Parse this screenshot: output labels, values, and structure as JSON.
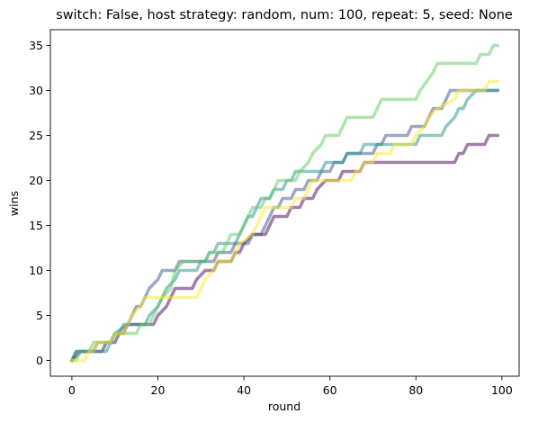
{
  "chart_data": {
    "type": "line",
    "title": "switch: False, host strategy: random, num: 100, repeat: 5, seed: None",
    "xlabel": "round",
    "ylabel": "wins",
    "xlim": [
      -5,
      104
    ],
    "ylim": [
      -1.75,
      36.75
    ],
    "xticks": [
      0,
      20,
      40,
      60,
      80,
      100
    ],
    "yticks": [
      0,
      5,
      10,
      15,
      20,
      25,
      30,
      35
    ],
    "grid": false,
    "legend": "none",
    "line_alpha": 0.5,
    "series": [
      {
        "color": "#440154",
        "points": [
          [
            0,
            0
          ],
          [
            2,
            1
          ],
          [
            7,
            1
          ],
          [
            8,
            2
          ],
          [
            10,
            2
          ],
          [
            11,
            3
          ],
          [
            12,
            3
          ],
          [
            13,
            4
          ],
          [
            19,
            4
          ],
          [
            20,
            5
          ],
          [
            22,
            6
          ],
          [
            23,
            7
          ],
          [
            24,
            8
          ],
          [
            28,
            8
          ],
          [
            29,
            9
          ],
          [
            31,
            10
          ],
          [
            33,
            10
          ],
          [
            34,
            11
          ],
          [
            37,
            11
          ],
          [
            38,
            12
          ],
          [
            39,
            12
          ],
          [
            40,
            13
          ],
          [
            42,
            14
          ],
          [
            45,
            14
          ],
          [
            46,
            15
          ],
          [
            47,
            16
          ],
          [
            50,
            16
          ],
          [
            51,
            17
          ],
          [
            53,
            17
          ],
          [
            54,
            18
          ],
          [
            56,
            18
          ],
          [
            57,
            19
          ],
          [
            59,
            20
          ],
          [
            62,
            20
          ],
          [
            63,
            21
          ],
          [
            67,
            21
          ],
          [
            68,
            22
          ],
          [
            84,
            22
          ],
          [
            85,
            22
          ],
          [
            89,
            22
          ],
          [
            90,
            23
          ],
          [
            91,
            23
          ],
          [
            92,
            24
          ],
          [
            96,
            24
          ],
          [
            97,
            25
          ],
          [
            99,
            25
          ]
        ]
      },
      {
        "color": "#3b528b",
        "points": [
          [
            0,
            0
          ],
          [
            1,
            1
          ],
          [
            5,
            1
          ],
          [
            6,
            2
          ],
          [
            9,
            2
          ],
          [
            10,
            3
          ],
          [
            13,
            4
          ],
          [
            15,
            6
          ],
          [
            16,
            6
          ],
          [
            17,
            7
          ],
          [
            18,
            8
          ],
          [
            20,
            9
          ],
          [
            21,
            10
          ],
          [
            24,
            10
          ],
          [
            25,
            11
          ],
          [
            33,
            11
          ],
          [
            34,
            12
          ],
          [
            37,
            12
          ],
          [
            38,
            13
          ],
          [
            41,
            13
          ],
          [
            42,
            14
          ],
          [
            44,
            14
          ],
          [
            45,
            15
          ],
          [
            46,
            16
          ],
          [
            47,
            17
          ],
          [
            48,
            17
          ],
          [
            49,
            18
          ],
          [
            51,
            18
          ],
          [
            52,
            19
          ],
          [
            54,
            19
          ],
          [
            55,
            20
          ],
          [
            57,
            20
          ],
          [
            58,
            21
          ],
          [
            60,
            21
          ],
          [
            61,
            22
          ],
          [
            63,
            22
          ],
          [
            64,
            23
          ],
          [
            70,
            23
          ],
          [
            71,
            24
          ],
          [
            72,
            24
          ],
          [
            73,
            25
          ],
          [
            78,
            25
          ],
          [
            79,
            26
          ],
          [
            82,
            26
          ],
          [
            83,
            27
          ],
          [
            84,
            28
          ],
          [
            86,
            28
          ],
          [
            87,
            29
          ],
          [
            88,
            30
          ],
          [
            93,
            30
          ],
          [
            94,
            30
          ],
          [
            99,
            30
          ]
        ]
      },
      {
        "color": "#21918c",
        "points": [
          [
            0,
            0
          ],
          [
            1,
            1
          ],
          [
            8,
            1
          ],
          [
            9,
            2
          ],
          [
            10,
            3
          ],
          [
            11,
            3
          ],
          [
            12,
            4
          ],
          [
            17,
            4
          ],
          [
            18,
            5
          ],
          [
            20,
            6
          ],
          [
            21,
            7
          ],
          [
            22,
            8
          ],
          [
            24,
            9
          ],
          [
            25,
            10
          ],
          [
            29,
            10
          ],
          [
            30,
            11
          ],
          [
            31,
            11
          ],
          [
            32,
            12
          ],
          [
            33,
            12
          ],
          [
            34,
            13
          ],
          [
            38,
            13
          ],
          [
            39,
            14
          ],
          [
            40,
            15
          ],
          [
            41,
            16
          ],
          [
            42,
            16
          ],
          [
            43,
            17
          ],
          [
            44,
            18
          ],
          [
            46,
            18
          ],
          [
            47,
            19
          ],
          [
            49,
            19
          ],
          [
            50,
            20
          ],
          [
            51,
            20
          ],
          [
            52,
            21
          ],
          [
            58,
            21
          ],
          [
            59,
            22
          ],
          [
            63,
            22
          ],
          [
            64,
            23
          ],
          [
            67,
            23
          ],
          [
            68,
            24
          ],
          [
            80,
            24
          ],
          [
            81,
            25
          ],
          [
            86,
            25
          ],
          [
            87,
            26
          ],
          [
            89,
            27
          ],
          [
            90,
            28
          ],
          [
            91,
            28
          ],
          [
            92,
            29
          ],
          [
            94,
            30
          ],
          [
            99,
            30
          ]
        ]
      },
      {
        "color": "#5ec962",
        "points": [
          [
            0,
            0
          ],
          [
            1,
            0
          ],
          [
            2,
            1
          ],
          [
            4,
            1
          ],
          [
            5,
            2
          ],
          [
            9,
            2
          ],
          [
            10,
            3
          ],
          [
            15,
            3
          ],
          [
            16,
            4
          ],
          [
            18,
            4
          ],
          [
            19,
            5
          ],
          [
            20,
            6
          ],
          [
            21,
            7
          ],
          [
            23,
            8
          ],
          [
            24,
            10
          ],
          [
            26,
            11
          ],
          [
            31,
            11
          ],
          [
            32,
            12
          ],
          [
            35,
            12
          ],
          [
            36,
            13
          ],
          [
            37,
            14
          ],
          [
            39,
            14
          ],
          [
            40,
            15
          ],
          [
            41,
            16
          ],
          [
            42,
            17
          ],
          [
            44,
            17
          ],
          [
            45,
            18
          ],
          [
            46,
            18
          ],
          [
            47,
            19
          ],
          [
            48,
            20
          ],
          [
            52,
            20
          ],
          [
            53,
            21
          ],
          [
            55,
            22
          ],
          [
            56,
            23
          ],
          [
            58,
            24
          ],
          [
            59,
            25
          ],
          [
            62,
            25
          ],
          [
            63,
            26
          ],
          [
            64,
            27
          ],
          [
            70,
            27
          ],
          [
            71,
            28
          ],
          [
            72,
            29
          ],
          [
            80,
            29
          ],
          [
            81,
            30
          ],
          [
            84,
            32
          ],
          [
            85,
            33
          ],
          [
            94,
            33
          ],
          [
            95,
            34
          ],
          [
            97,
            34
          ],
          [
            98,
            35
          ],
          [
            99,
            35
          ]
        ]
      },
      {
        "color": "#fde725",
        "points": [
          [
            0,
            0
          ],
          [
            3,
            0
          ],
          [
            4,
            1
          ],
          [
            5,
            1
          ],
          [
            6,
            2
          ],
          [
            9,
            2
          ],
          [
            10,
            3
          ],
          [
            12,
            3
          ],
          [
            13,
            4
          ],
          [
            14,
            5
          ],
          [
            16,
            6
          ],
          [
            17,
            7
          ],
          [
            29,
            7
          ],
          [
            30,
            8
          ],
          [
            31,
            9
          ],
          [
            33,
            10
          ],
          [
            34,
            11
          ],
          [
            37,
            11
          ],
          [
            38,
            12
          ],
          [
            39,
            13
          ],
          [
            42,
            14
          ],
          [
            43,
            15
          ],
          [
            44,
            16
          ],
          [
            45,
            17
          ],
          [
            51,
            17
          ],
          [
            52,
            18
          ],
          [
            54,
            18
          ],
          [
            55,
            19
          ],
          [
            56,
            20
          ],
          [
            65,
            20
          ],
          [
            66,
            21
          ],
          [
            67,
            21
          ],
          [
            68,
            22
          ],
          [
            70,
            22
          ],
          [
            71,
            23
          ],
          [
            74,
            23
          ],
          [
            75,
            24
          ],
          [
            79,
            24
          ],
          [
            80,
            25
          ],
          [
            82,
            26
          ],
          [
            83,
            27
          ],
          [
            85,
            28
          ],
          [
            89,
            29
          ],
          [
            90,
            30
          ],
          [
            96,
            30
          ],
          [
            97,
            31
          ],
          [
            99,
            31
          ]
        ]
      }
    ]
  }
}
